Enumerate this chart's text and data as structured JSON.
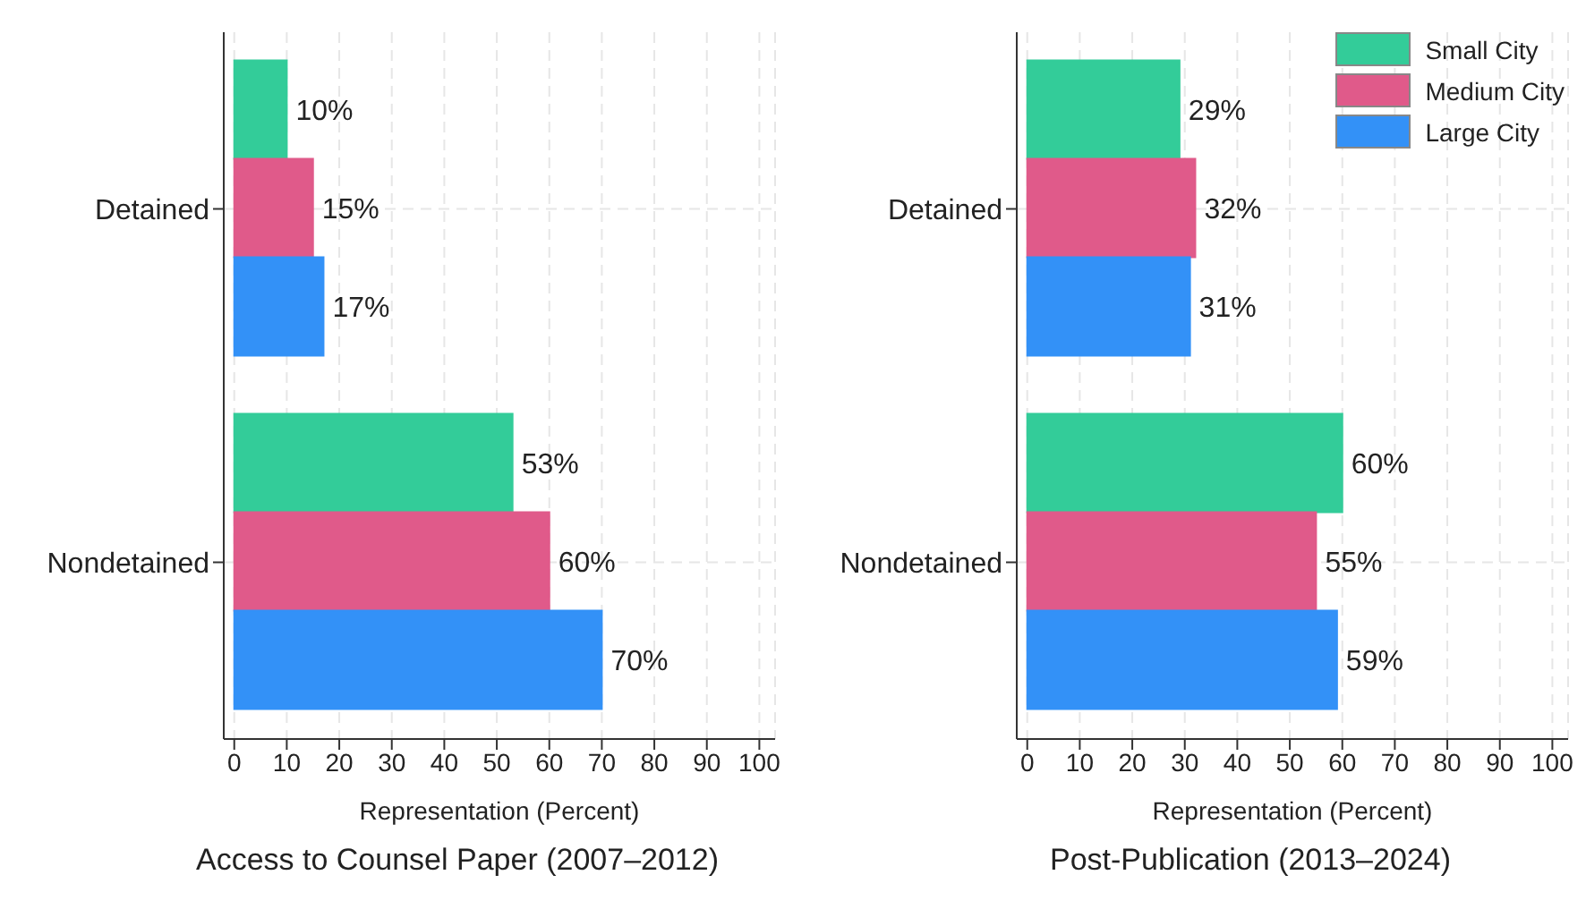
{
  "chart_data": [
    {
      "type": "bar",
      "orientation": "horizontal",
      "title": "Access to Counsel Paper (2007–2012)",
      "xlabel": "Representation (Percent)",
      "categories": [
        "Detained",
        "Nondetained"
      ],
      "series": [
        {
          "color": "#33cc99",
          "values": [
            10,
            53
          ],
          "value_labels": [
            "10%",
            "53%"
          ]
        },
        {
          "color": "#e05a8a",
          "values": [
            15,
            60
          ],
          "value_labels": [
            "15%",
            "60%"
          ]
        },
        {
          "color": "#3391f7",
          "values": [
            17,
            70
          ],
          "value_labels": [
            "17%",
            "70%"
          ]
        }
      ],
      "xlim": [
        -2,
        103
      ],
      "xticks": [
        0,
        10,
        20,
        30,
        40,
        50,
        60,
        70,
        80,
        90,
        100
      ],
      "grid": true,
      "legend": false
    },
    {
      "type": "bar",
      "orientation": "horizontal",
      "title": "Post-Publication (2013–2024)",
      "xlabel": "Representation (Percent)",
      "categories": [
        "Detained",
        "Nondetained"
      ],
      "series": [
        {
          "name": "Small City",
          "color": "#33cc99",
          "values": [
            29,
            60
          ],
          "value_labels": [
            "29%",
            "60%"
          ]
        },
        {
          "name": "Medium City",
          "color": "#e05a8a",
          "values": [
            32,
            55
          ],
          "value_labels": [
            "32%",
            "55%"
          ]
        },
        {
          "name": "Large City",
          "color": "#3391f7",
          "values": [
            31,
            59
          ],
          "value_labels": [
            "31%",
            "59%"
          ]
        }
      ],
      "xlim": [
        -2,
        103
      ],
      "xticks": [
        0,
        10,
        20,
        30,
        40,
        50,
        60,
        70,
        80,
        90,
        100
      ],
      "grid": true,
      "legend": "top right"
    }
  ]
}
